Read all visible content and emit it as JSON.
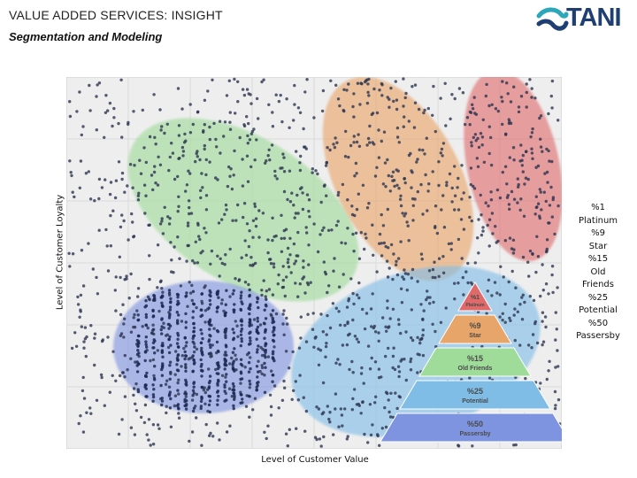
{
  "header": {
    "title": "VALUE ADDED SERVICES: INSIGHT",
    "subtitle": "Segmentation and Modeling",
    "logo_text": "TANI",
    "logo_color": "#1f3f73",
    "logo_accent_color": "#2aa7b8"
  },
  "chart_data": {
    "type": "scatter",
    "xlabel": "Level of Customer Value",
    "ylabel": "Level of Customer Loyalty",
    "grid": true,
    "legend_position": "right",
    "segments": [
      {
        "percent": 1,
        "name": "Platinum",
        "label_percent": "%1",
        "color": "#e06a6a"
      },
      {
        "percent": 9,
        "name": "Star",
        "label_percent": "%9",
        "color": "#e8a569"
      },
      {
        "percent": 15,
        "name": "Old Friends",
        "label_percent": "%15",
        "color": "#9fdc9a"
      },
      {
        "percent": 25,
        "name": "Potential",
        "label_percent": "%25",
        "color": "#7fbde6"
      },
      {
        "percent": 50,
        "name": "Passersby",
        "label_percent": "%50",
        "color": "#7f94e0"
      }
    ],
    "legend": [
      "%1",
      "Platinum",
      "%9",
      "Star",
      "%15",
      "Old",
      "Friends",
      "%25",
      "Potential",
      "%50",
      "Passersby"
    ]
  }
}
